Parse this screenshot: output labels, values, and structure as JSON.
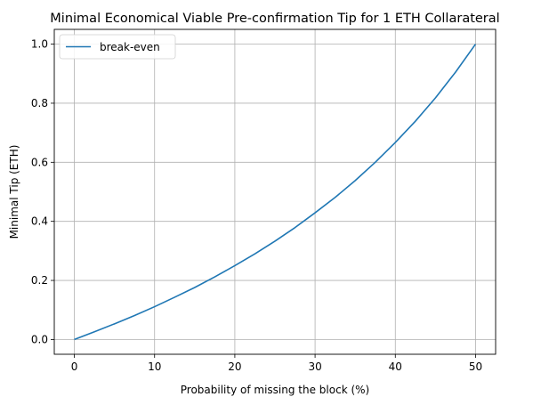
{
  "chart_data": {
    "type": "line",
    "title": "Minimal Economical Viable Pre-confirmation Tip for 1 ETH Collarateral",
    "xlabel": "Probability of missing the block (%)",
    "ylabel": "Minimal Tip (ETH)",
    "xlim": [
      -2.5,
      52.5
    ],
    "ylim": [
      -0.05,
      1.05
    ],
    "xticks": [
      0,
      10,
      20,
      30,
      40,
      50
    ],
    "yticks": [
      0.0,
      0.2,
      0.4,
      0.6,
      0.8,
      1.0
    ],
    "xtick_labels": [
      "0",
      "10",
      "20",
      "30",
      "40",
      "50"
    ],
    "ytick_labels": [
      "0.0",
      "0.2",
      "0.4",
      "0.6",
      "0.8",
      "1.0"
    ],
    "grid": true,
    "legend_position": "top-left",
    "series": [
      {
        "name": "break-even",
        "color": "#1f77b4",
        "x": [
          0,
          2.5,
          5,
          7.5,
          10,
          12.5,
          15,
          17.5,
          20,
          22.5,
          25,
          27.5,
          30,
          32.5,
          35,
          37.5,
          40,
          42.5,
          45,
          47.5,
          50
        ],
        "y": [
          0.0,
          0.026,
          0.053,
          0.081,
          0.111,
          0.143,
          0.176,
          0.212,
          0.25,
          0.29,
          0.333,
          0.379,
          0.429,
          0.481,
          0.538,
          0.6,
          0.667,
          0.739,
          0.818,
          0.905,
          1.0
        ]
      }
    ]
  }
}
